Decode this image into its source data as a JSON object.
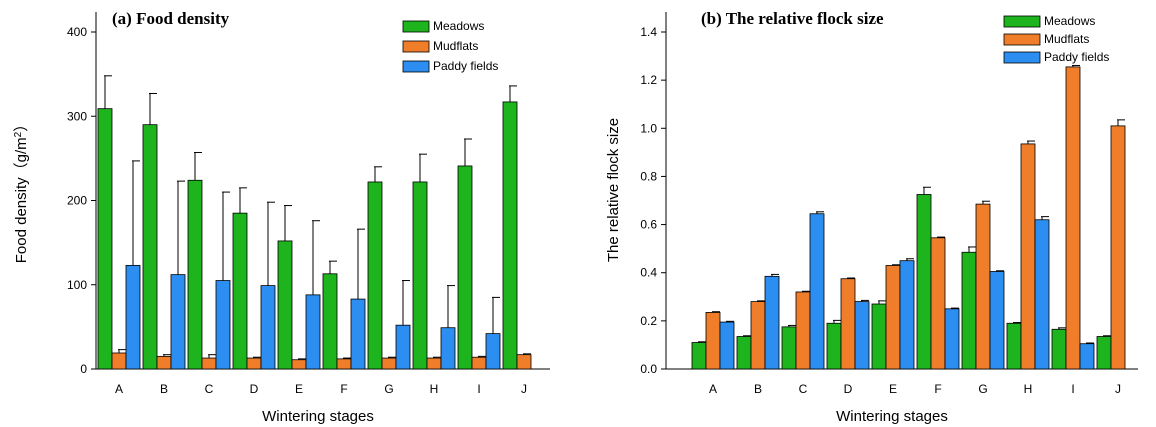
{
  "colors": {
    "Meadows": "#1db41d",
    "Mudflats": "#f07d2a",
    "Paddy fields": "#2b8ef0",
    "axis": "#000000"
  },
  "chart_data": [
    {
      "type": "bar",
      "title": "(a) Food density",
      "xlabel": "Wintering stages",
      "ylabel": "Food density（g/m²）",
      "ylabel_main": "Food density（g/m",
      "ylabel_sup": "2",
      "ylabel_tail": "）",
      "ylim": [
        0,
        400
      ],
      "yticks": [
        "0",
        "100",
        "200",
        "300",
        "400"
      ],
      "yticks_values": [
        0,
        100,
        200,
        300,
        400
      ],
      "categories": [
        "A",
        "B",
        "C",
        "D",
        "E",
        "F",
        "G",
        "H",
        "I",
        "J"
      ],
      "legend_position": "top-right",
      "error_bar_direction": "upper",
      "series": [
        {
          "name": "Meadows",
          "values": [
            309,
            290,
            224,
            185,
            152,
            113,
            222,
            222,
            241,
            317
          ],
          "errors": [
            39,
            37,
            33,
            30,
            42,
            15,
            18,
            33,
            32,
            19
          ]
        },
        {
          "name": "Mudflats",
          "values": [
            19,
            15,
            13,
            13,
            11,
            12,
            13,
            13,
            14,
            17
          ],
          "errors": [
            4,
            2,
            4,
            1,
            1,
            1,
            1,
            1,
            1,
            1
          ]
        },
        {
          "name": "Paddy fields",
          "values": [
            123,
            112,
            105,
            99,
            88,
            83,
            52,
            49,
            42,
            null
          ],
          "errors": [
            124,
            111,
            105,
            99,
            88,
            83,
            53,
            50,
            43,
            null
          ]
        }
      ]
    },
    {
      "type": "bar",
      "title": "(b) The relative flock size",
      "xlabel": "Wintering stages",
      "ylabel": "The relative flock size",
      "ylim": [
        0,
        1.4
      ],
      "yticks": [
        "0.0",
        "0.2",
        "0.4",
        "0.6",
        "0.8",
        "1.0",
        "1.2",
        "1.4"
      ],
      "yticks_values": [
        0,
        0.2,
        0.4,
        0.6,
        0.8,
        1.0,
        1.2,
        1.4
      ],
      "categories": [
        "A",
        "B",
        "C",
        "D",
        "E",
        "F",
        "G",
        "H",
        "I",
        "J"
      ],
      "legend_position": "top-right",
      "error_bar_direction": "upper",
      "series": [
        {
          "name": "Meadows",
          "values": [
            0.11,
            0.135,
            0.175,
            0.19,
            0.27,
            0.725,
            0.485,
            0.19,
            0.165,
            0.135
          ],
          "errors": [
            0.003,
            0.003,
            0.006,
            0.012,
            0.013,
            0.03,
            0.022,
            0.003,
            0.006,
            0.003
          ]
        },
        {
          "name": "Mudflats",
          "values": [
            0.235,
            0.28,
            0.32,
            0.375,
            0.43,
            0.545,
            0.685,
            0.935,
            1.255,
            1.01
          ],
          "errors": [
            0.003,
            0.003,
            0.003,
            0.003,
            0.003,
            0.003,
            0.012,
            0.012,
            0.006,
            0.025
          ]
        },
        {
          "name": "Paddy fields",
          "values": [
            0.195,
            0.385,
            0.645,
            0.28,
            0.45,
            0.25,
            0.405,
            0.62,
            0.105,
            null
          ],
          "errors": [
            0.003,
            0.008,
            0.008,
            0.005,
            0.008,
            0.003,
            0.003,
            0.013,
            0.003,
            null
          ]
        }
      ]
    }
  ]
}
